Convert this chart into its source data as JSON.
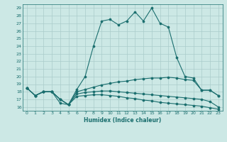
{
  "xlabel": "Humidex (Indice chaleur)",
  "ylabel": "",
  "xlim": [
    -0.5,
    23.5
  ],
  "ylim": [
    15.5,
    29.5
  ],
  "yticks": [
    16,
    17,
    18,
    19,
    20,
    21,
    22,
    23,
    24,
    25,
    26,
    27,
    28,
    29
  ],
  "xticks": [
    0,
    1,
    2,
    3,
    4,
    5,
    6,
    7,
    8,
    9,
    10,
    11,
    12,
    13,
    14,
    15,
    16,
    17,
    18,
    19,
    20,
    21,
    22,
    23
  ],
  "bg_color": "#cce8e5",
  "grid_color": "#aaccca",
  "line_color": "#1a6e6e",
  "line1": [
    18.5,
    17.5,
    18.0,
    18.0,
    16.5,
    16.3,
    18.3,
    20.0,
    24.0,
    27.3,
    27.5,
    26.8,
    27.3,
    28.5,
    27.3,
    29.0,
    27.0,
    26.5,
    22.5,
    20.0,
    19.8,
    18.2,
    18.2,
    17.5
  ],
  "line2": [
    18.5,
    17.5,
    18.0,
    18.0,
    17.0,
    16.3,
    18.0,
    18.3,
    18.6,
    18.9,
    19.1,
    19.3,
    19.4,
    19.6,
    19.7,
    19.8,
    19.8,
    19.9,
    19.8,
    19.6,
    19.5,
    18.2,
    18.2,
    17.5
  ],
  "line3": [
    18.5,
    17.5,
    18.0,
    18.0,
    17.0,
    16.3,
    17.7,
    17.9,
    18.0,
    18.1,
    18.1,
    18.0,
    17.9,
    17.8,
    17.7,
    17.6,
    17.5,
    17.4,
    17.3,
    17.2,
    17.1,
    17.0,
    16.7,
    16.0
  ],
  "line4": [
    18.5,
    17.5,
    18.0,
    18.0,
    17.0,
    16.3,
    17.4,
    17.5,
    17.6,
    17.6,
    17.5,
    17.4,
    17.2,
    17.1,
    16.9,
    16.8,
    16.6,
    16.5,
    16.4,
    16.3,
    16.2,
    16.1,
    15.9,
    15.7
  ]
}
